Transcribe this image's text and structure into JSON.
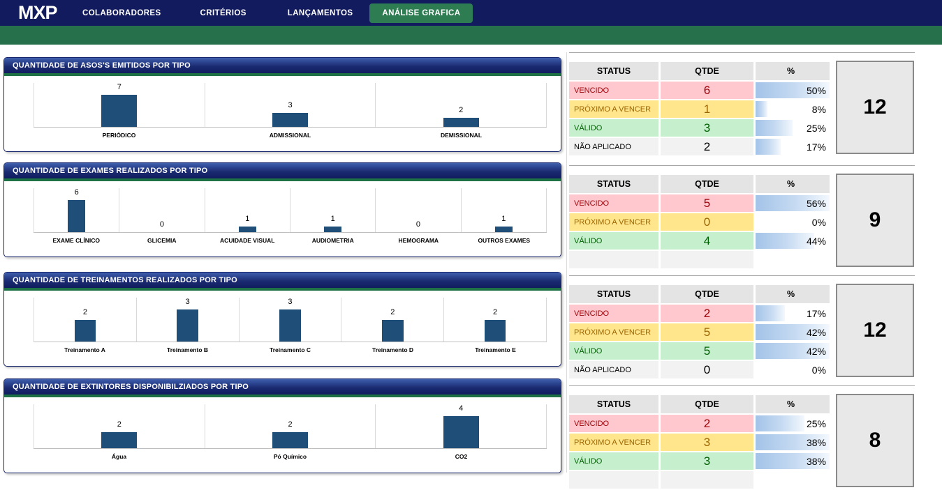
{
  "nav": {
    "logo": "MXP",
    "items": [
      {
        "label": "COLABORADORES"
      },
      {
        "label": "CRITÉRIOS"
      },
      {
        "label": "LANÇAMENTOS"
      }
    ],
    "active_tab": "ANÁLISE GRAFICA"
  },
  "theme": {
    "navy": "#121B5E",
    "green_banner": "#26714B",
    "active_button_green": "#2E7D52",
    "panel_header_navy": "#1B2B72",
    "panel_strip_green": "#1E7145",
    "bar_color": "#1F4E79",
    "databar_blue": "#A3C3E8",
    "vencido_bg": "#FFC7CE",
    "vencido_text": "#9C0006",
    "proximo_bg": "#FFE58C",
    "proximo_text": "#9C6500",
    "valido_bg": "#C6EFCE",
    "valido_text": "#006100",
    "neutro_bg": "#F2F2F2"
  },
  "chart_data": [
    {
      "type": "bar",
      "title": "QUANTIDADE DE ASOS'S EMITIDOS POR TIPO",
      "categories": [
        "PERIÓDICO",
        "ADMISSIONAL",
        "DEMISSIONAL"
      ],
      "values": [
        7,
        3,
        2
      ],
      "value_labels": true,
      "grid": "category-separators",
      "legend": "none"
    },
    {
      "type": "bar",
      "title": "QUANTIDADE DE EXAMES REALIZADOS POR TIPO",
      "categories": [
        "EXAME CLÍNICO",
        "GLICEMIA",
        "ACUIDADE VISUAL",
        "AUDIOMETRIA",
        "HEMOGRAMA",
        "OUTROS EXAMES"
      ],
      "values": [
        6,
        0,
        1,
        1,
        0,
        1
      ],
      "value_labels": true,
      "grid": "category-separators",
      "legend": "none"
    },
    {
      "type": "bar",
      "title": "QUANTIDADE DE TREINAMENTOS REALIZADOS POR TIPO",
      "categories": [
        "Treinamento A",
        "Treinamento B",
        "Treinamento C",
        "Treinamento D",
        "Treinamento E"
      ],
      "values": [
        2,
        3,
        3,
        2,
        2
      ],
      "value_labels": true,
      "grid": "category-separators",
      "legend": "none"
    },
    {
      "type": "bar",
      "title": "QUANTIDADE DE EXTINTORES DISPONIBILZIADOS POR TIPO",
      "categories": [
        "Água",
        "Pó Químico",
        "CO2"
      ],
      "values": [
        2,
        2,
        4
      ],
      "value_labels": true,
      "grid": "category-separators",
      "legend": "none"
    }
  ],
  "status_tables": [
    {
      "headers": [
        "STATUS",
        "QTDE",
        "%"
      ],
      "rows": [
        {
          "status": "VENCIDO",
          "qtde": "6",
          "pct": "50%",
          "pct_num": 50,
          "style": "vencido"
        },
        {
          "status": "PRÓXIMO A VENCER",
          "qtde": "1",
          "pct": "8%",
          "pct_num": 8,
          "style": "proximo"
        },
        {
          "status": "VÁLIDO",
          "qtde": "3",
          "pct": "25%",
          "pct_num": 25,
          "style": "valido"
        },
        {
          "status": "NÃO APLICADO",
          "qtde": "2",
          "pct": "17%",
          "pct_num": 17,
          "style": "neutro"
        }
      ],
      "total": "12"
    },
    {
      "headers": [
        "STATUS",
        "QTDE",
        "%"
      ],
      "rows": [
        {
          "status": "VENCIDO",
          "qtde": "5",
          "pct": "56%",
          "pct_num": 56,
          "style": "vencido"
        },
        {
          "status": "PRÓXIMO A VENCER",
          "qtde": "0",
          "pct": "0%",
          "pct_num": 0,
          "style": "proximo"
        },
        {
          "status": "VÁLIDO",
          "qtde": "4",
          "pct": "44%",
          "pct_num": 44,
          "style": "valido"
        },
        {
          "status": "",
          "qtde": "",
          "pct": "",
          "pct_num": 0,
          "style": "empty"
        }
      ],
      "total": "9"
    },
    {
      "headers": [
        "STATUS",
        "QTDE",
        "%"
      ],
      "rows": [
        {
          "status": "VENCIDO",
          "qtde": "2",
          "pct": "17%",
          "pct_num": 17,
          "style": "vencido"
        },
        {
          "status": "PRÓXIMO A VENCER",
          "qtde": "5",
          "pct": "42%",
          "pct_num": 42,
          "style": "proximo"
        },
        {
          "status": "VÁLIDO",
          "qtde": "5",
          "pct": "42%",
          "pct_num": 42,
          "style": "valido"
        },
        {
          "status": "NÃO APLICADO",
          "qtde": "0",
          "pct": "0%",
          "pct_num": 0,
          "style": "neutro"
        }
      ],
      "total": "12"
    },
    {
      "headers": [
        "STATUS",
        "QTDE",
        "%"
      ],
      "rows": [
        {
          "status": "VENCIDO",
          "qtde": "2",
          "pct": "25%",
          "pct_num": 25,
          "style": "vencido"
        },
        {
          "status": "PRÓXIMO A VENCER",
          "qtde": "3",
          "pct": "38%",
          "pct_num": 38,
          "style": "proximo"
        },
        {
          "status": "VÁLIDO",
          "qtde": "3",
          "pct": "38%",
          "pct_num": 38,
          "style": "valido"
        },
        {
          "status": "",
          "qtde": "",
          "pct": "",
          "pct_num": 0,
          "style": "empty"
        }
      ],
      "total": "8"
    }
  ]
}
